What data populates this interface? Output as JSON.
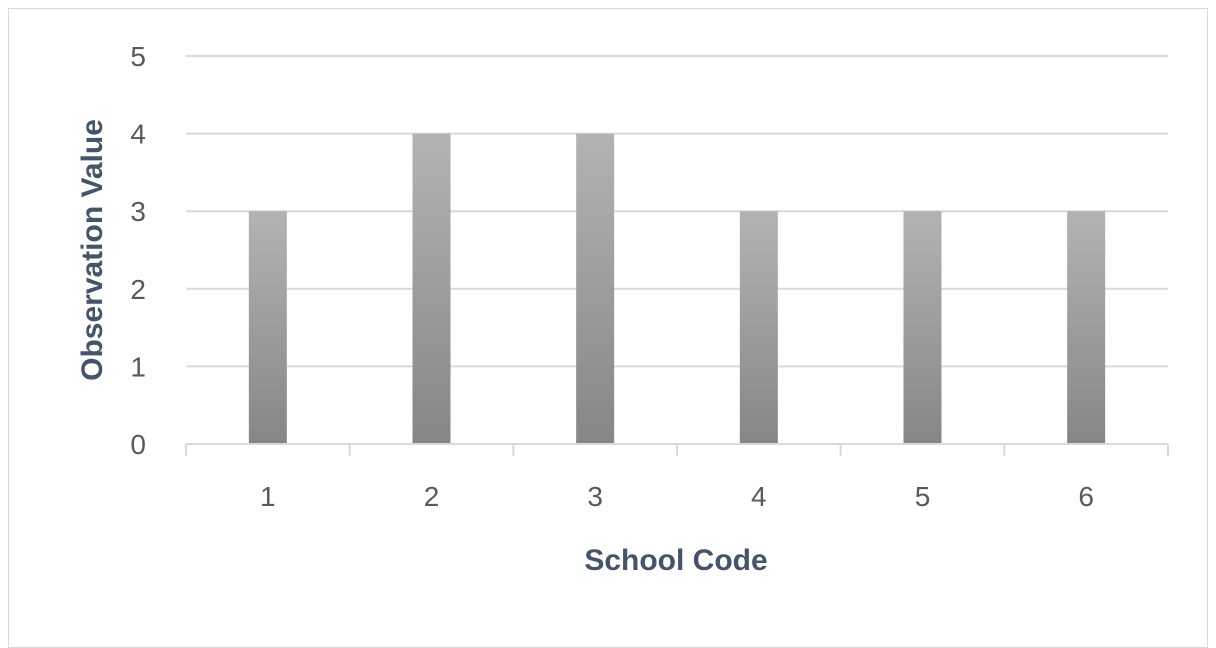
{
  "chart_data": {
    "type": "bar",
    "categories": [
      "1",
      "2",
      "3",
      "4",
      "5",
      "6"
    ],
    "values": [
      3,
      4,
      4,
      3,
      3,
      3
    ],
    "title": "",
    "xlabel": "School Code",
    "ylabel": "Observation Value",
    "ylim": [
      0,
      5
    ],
    "yticks": [
      "0",
      "1",
      "2",
      "3",
      "4",
      "5"
    ],
    "grid": true,
    "legend": "none",
    "colors": {
      "bar_top": "#b3b3b3",
      "bar_bottom": "#868686",
      "gridline": "#d9d9d9",
      "axis_title": "#44546a",
      "tick_label": "#595959"
    }
  }
}
